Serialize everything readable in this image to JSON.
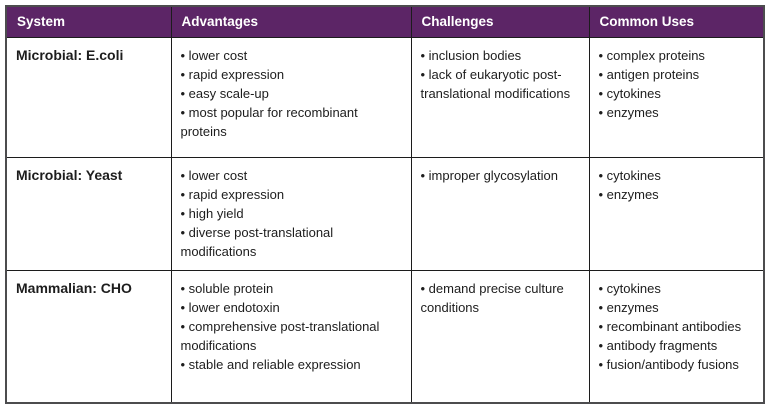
{
  "table": {
    "bullet": "•",
    "colors": {
      "header_bg": "#5c2566",
      "header_text": "#ffffff",
      "body_text": "#1d1d1d",
      "border": "#1c1c1c"
    },
    "columns": [
      {
        "label": "System"
      },
      {
        "label": "Advantages"
      },
      {
        "label": "Challenges"
      },
      {
        "label": "Common Uses"
      }
    ],
    "rows": [
      {
        "system": "Microbial: E.coli",
        "advantages": [
          "lower cost",
          "rapid expression",
          "easy scale-up",
          "most popular for recombinant proteins"
        ],
        "challenges": [
          "inclusion bodies",
          "lack of eukaryotic post-translational modifications"
        ],
        "common_uses": [
          "complex proteins",
          "antigen proteins",
          "cytokines",
          "enzymes"
        ]
      },
      {
        "system": "Microbial: Yeast",
        "advantages": [
          "lower cost",
          "rapid expression",
          "high yield",
          "diverse post-translational modifications"
        ],
        "challenges": [
          "improper glycosylation"
        ],
        "common_uses": [
          "cytokines",
          "enzymes"
        ]
      },
      {
        "system": "Mammalian: CHO",
        "advantages": [
          "soluble protein",
          "lower endotoxin",
          "comprehensive post-translational modifications",
          "stable and reliable expression"
        ],
        "challenges": [
          "demand precise culture conditions"
        ],
        "common_uses": [
          "cytokines",
          "enzymes",
          "recombinant antibodies",
          "antibody fragments",
          "fusion/antibody fusions"
        ]
      }
    ]
  }
}
